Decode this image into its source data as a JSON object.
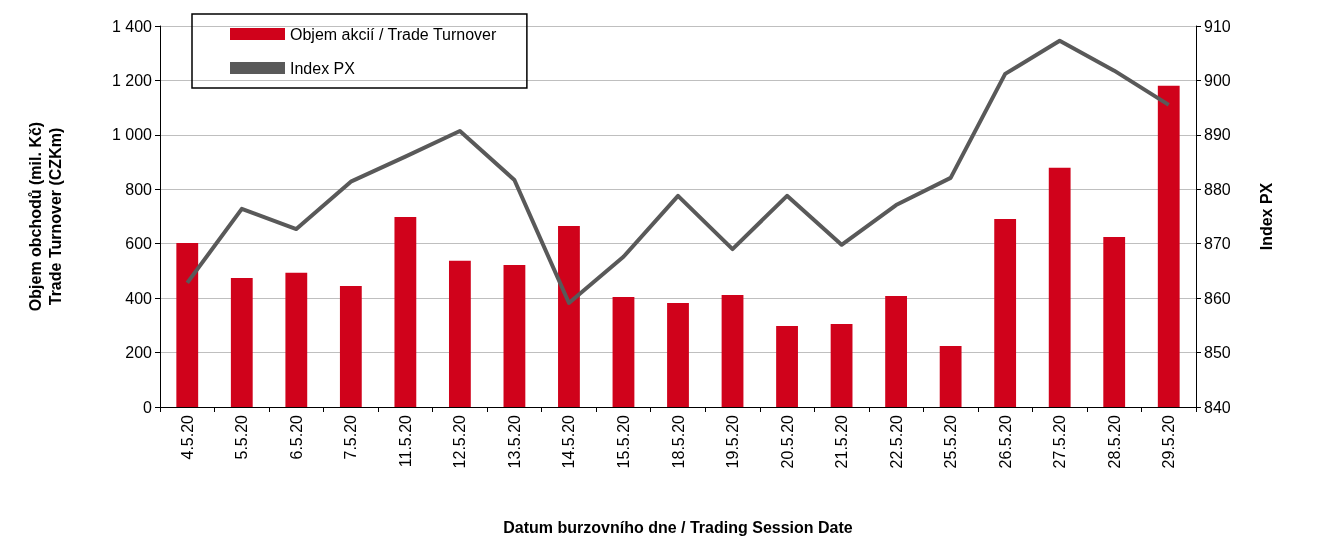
{
  "chart_data": {
    "type": "bar",
    "xlabel": "Datum burzovního dne / Trading Session Date",
    "ylabel": "Objem obchodů (mil. Kč)\nTrade Turnover (CZKm)",
    "y2label": "Index PX",
    "categories": [
      "4.5.20",
      "5.5.20",
      "6.5.20",
      "7.5.20",
      "11.5.20",
      "12.5.20",
      "13.5.20",
      "14.5.20",
      "15.5.20",
      "18.5.20",
      "19.5.20",
      "20.5.20",
      "21.5.20",
      "22.5.20",
      "25.5.20",
      "26.5.20",
      "27.5.20",
      "28.5.20",
      "29.5.20"
    ],
    "series": [
      {
        "name": "Objem akcií / Trade Turnover",
        "color": "#d0021b",
        "values": [
          603,
          474,
          493,
          445,
          698,
          537,
          522,
          665,
          404,
          382,
          412,
          298,
          305,
          408,
          224,
          691,
          879,
          625,
          1180
        ]
      },
      {
        "name": "Index PX",
        "type": "line",
        "axis": "y2",
        "color": "#595959",
        "marker": "none",
        "line_style": "solid",
        "values": [
          862.8,
          876.4,
          872.7,
          881.4,
          886,
          890.7,
          881.7,
          859.1,
          867.6,
          878.8,
          869,
          878.8,
          869.8,
          877.1,
          882.1,
          901.2,
          907.3,
          901.8,
          895.5
        ]
      }
    ],
    "ylim": [
      0,
      1400
    ],
    "yticks": [
      0,
      200,
      400,
      600,
      800,
      {
        "value": 1000,
        "label": "1 000"
      },
      {
        "value": 1200,
        "label": "1 200"
      },
      {
        "value": 1400,
        "label": "1 400"
      }
    ],
    "y2lim": [
      840,
      910
    ],
    "y2ticks": [
      840,
      850,
      860,
      870,
      880,
      890,
      900,
      910
    ],
    "grid": "y",
    "legend": "top left"
  }
}
